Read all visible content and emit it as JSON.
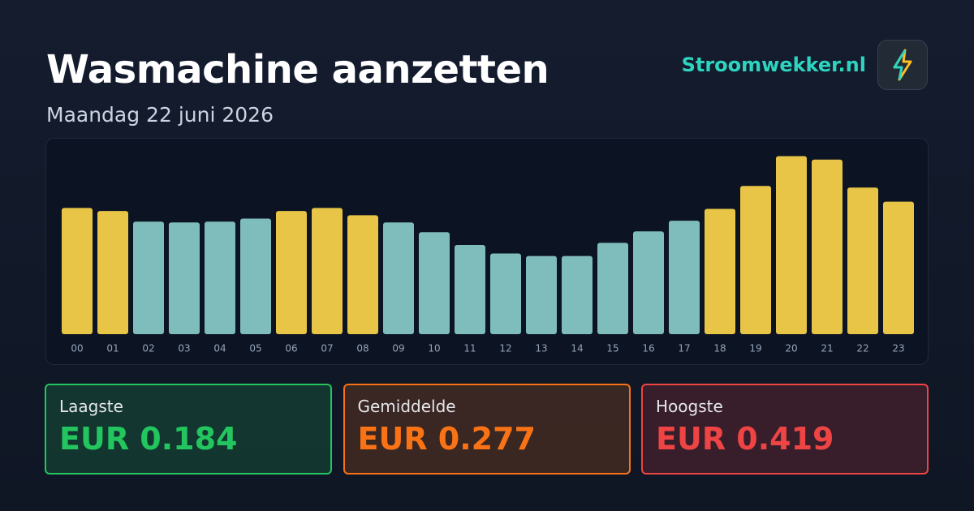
{
  "header": {
    "title": "Wasmachine aanzetten",
    "subtitle": "Maandag 22 juni 2026",
    "brand": "Stroomwekker.nl"
  },
  "chart_data": {
    "type": "bar",
    "categories": [
      "00",
      "01",
      "02",
      "03",
      "04",
      "05",
      "06",
      "07",
      "08",
      "09",
      "10",
      "11",
      "12",
      "13",
      "14",
      "15",
      "16",
      "17",
      "18",
      "19",
      "20",
      "21",
      "22",
      "23"
    ],
    "values": [
      0.297,
      0.29,
      0.265,
      0.263,
      0.265,
      0.272,
      0.29,
      0.297,
      0.28,
      0.263,
      0.24,
      0.21,
      0.19,
      0.184,
      0.184,
      0.215,
      0.242,
      0.267,
      0.295,
      0.349,
      0.419,
      0.411,
      0.345,
      0.312
    ],
    "colors": [
      "#e8c547",
      "#e8c547",
      "#7fbcbc",
      "#7fbcbc",
      "#7fbcbc",
      "#7fbcbc",
      "#e8c547",
      "#e8c547",
      "#e8c547",
      "#7fbcbc",
      "#7fbcbc",
      "#7fbcbc",
      "#7fbcbc",
      "#7fbcbc",
      "#7fbcbc",
      "#7fbcbc",
      "#7fbcbc",
      "#7fbcbc",
      "#e8c547",
      "#e8c547",
      "#e8c547",
      "#e8c547",
      "#e8c547",
      "#e8c547"
    ],
    "ylim": [
      0,
      0.42
    ]
  },
  "stats": [
    {
      "label": "Laagste",
      "value": "EUR 0.184",
      "color": "#22c55e"
    },
    {
      "label": "Gemiddelde",
      "value": "EUR 0.277",
      "color": "#f97316"
    },
    {
      "label": "Hoogste",
      "value": "EUR 0.419",
      "color": "#ef4444"
    }
  ]
}
